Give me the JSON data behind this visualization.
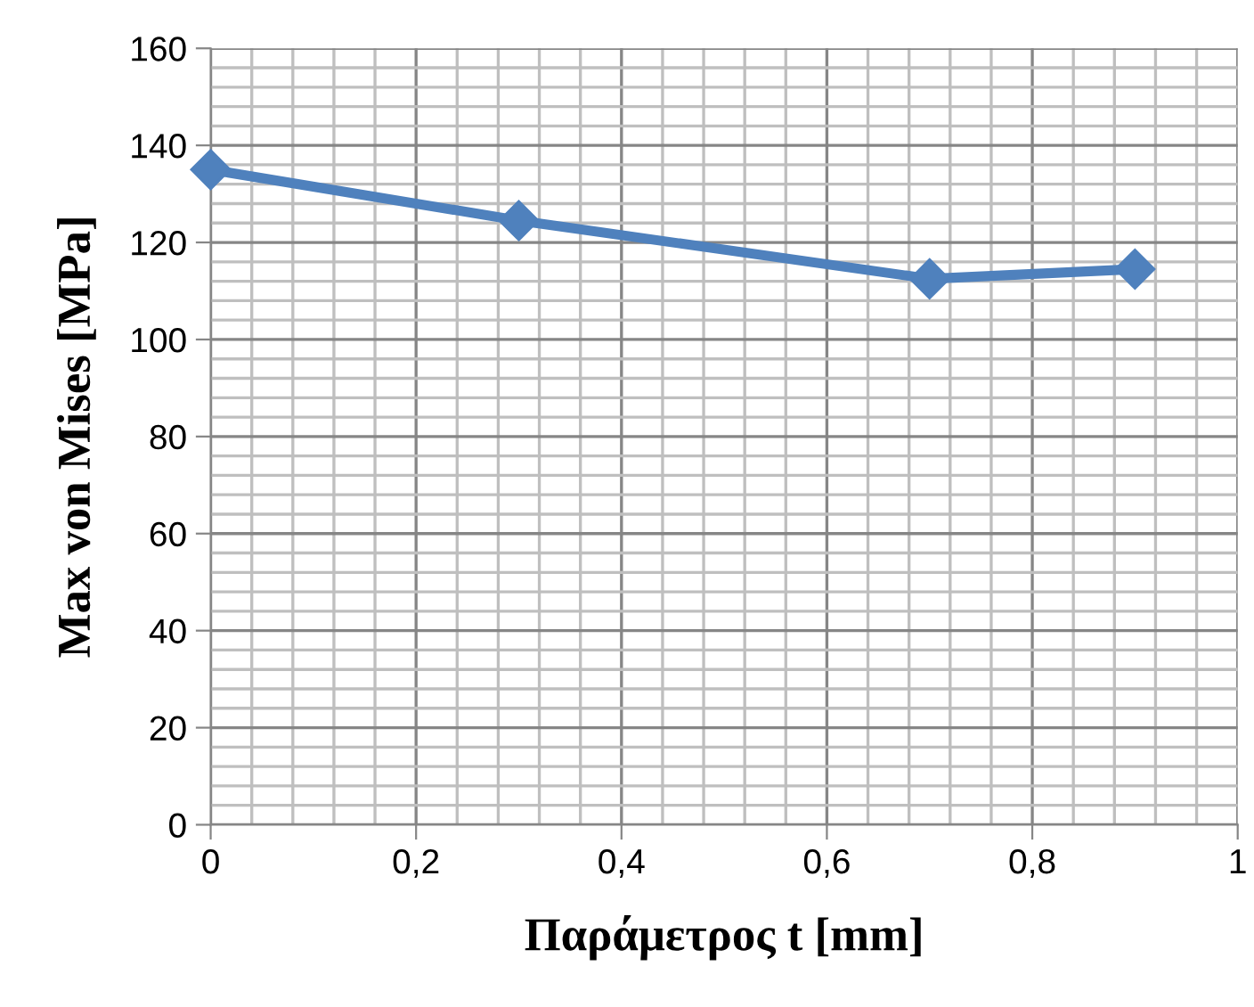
{
  "chart_data": {
    "type": "line",
    "xlabel": "Παράμετρος t [mm]",
    "ylabel": "Max von Mises [MPa]",
    "x": [
      0,
      0.3,
      0.7,
      0.9
    ],
    "series": [
      {
        "color": "#4f81bd",
        "values": [
          135,
          124.5,
          112.5,
          114.5
        ]
      }
    ],
    "xlim": [
      0,
      1
    ],
    "ylim": [
      0,
      160
    ],
    "xticks": [
      0,
      {
        "value": 0.2,
        "label": "0,2"
      },
      {
        "value": 0.4,
        "label": "0,4"
      },
      {
        "value": 0.6,
        "label": "0,6"
      },
      {
        "value": 0.8,
        "label": "0,8"
      },
      1
    ],
    "yticks": [
      0,
      20,
      40,
      60,
      80,
      100,
      120,
      140,
      160
    ],
    "grid": true,
    "marker": "diamond",
    "line_style": "solid"
  }
}
